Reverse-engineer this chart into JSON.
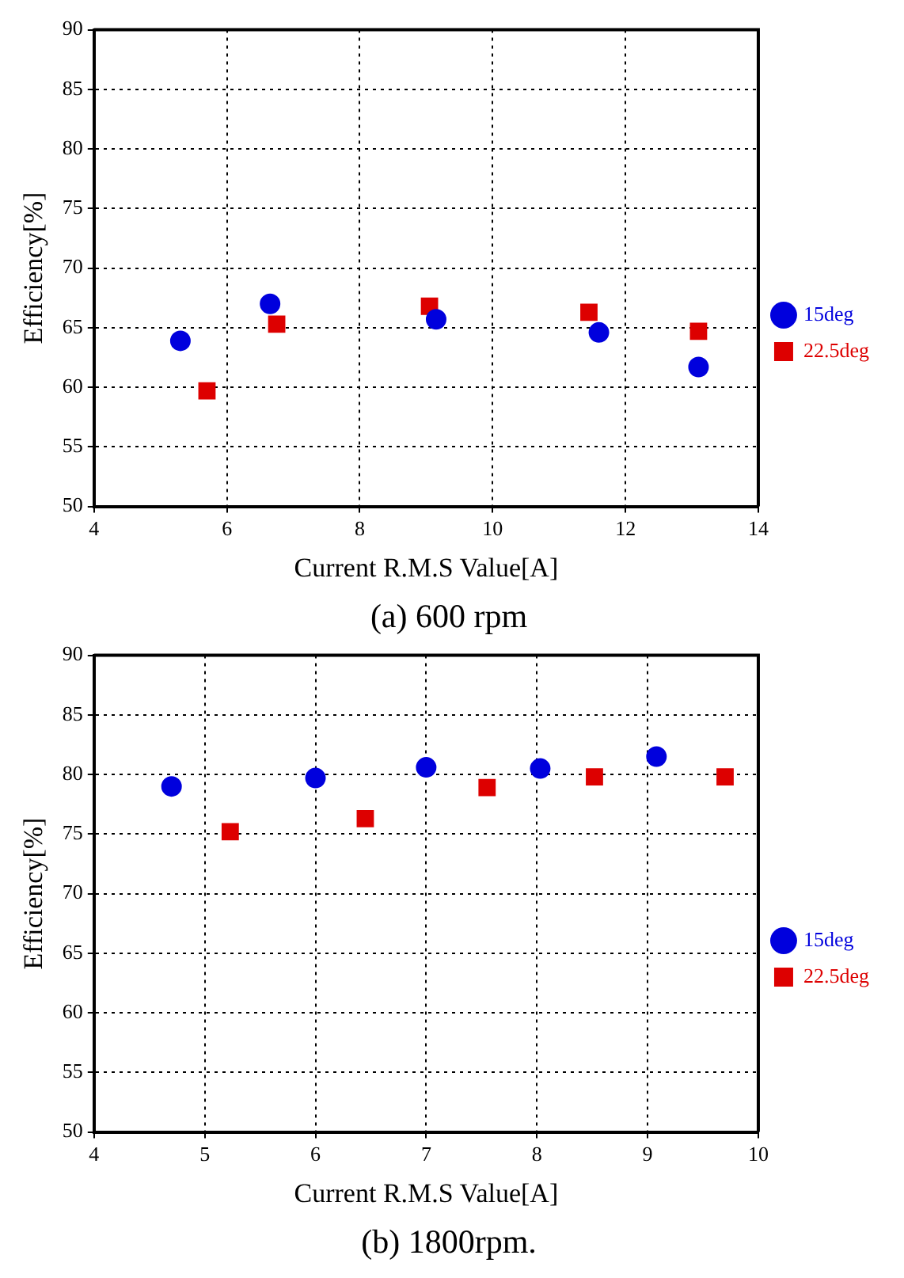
{
  "chart_data": [
    {
      "type": "scatter",
      "title": "(a) 600 rpm",
      "xlabel": "Current R.M.S Value[A]",
      "ylabel": "Efficiency[%]",
      "series": [
        {
          "name": "15deg",
          "color": "#0000dd",
          "marker": "circle",
          "x": [
            5.3,
            6.65,
            9.15,
            11.6,
            13.1
          ],
          "values": [
            63.9,
            67,
            65.7,
            64.6,
            61.7
          ]
        },
        {
          "name": "22.5deg",
          "color": "#dd0000",
          "marker": "square",
          "x": [
            5.7,
            6.75,
            9.05,
            11.45,
            13.1
          ],
          "values": [
            59.7,
            65.3,
            66.8,
            66.3,
            64.7
          ]
        }
      ],
      "xlim": [
        4,
        14
      ],
      "xticks": [
        4,
        6,
        8,
        10,
        12,
        14
      ],
      "ylim": [
        50,
        90
      ],
      "yticks": [
        50,
        55,
        60,
        65,
        70,
        75,
        80,
        85,
        90
      ],
      "grid": true,
      "legend": "right"
    },
    {
      "type": "scatter",
      "title": "(b) 1800rpm.",
      "xlabel": "Current R.M.S Value[A]",
      "ylabel": "Efficiency[%]",
      "series": [
        {
          "name": "15deg",
          "color": "#0000dd",
          "marker": "circle",
          "x": [
            4.7,
            6.0,
            7.0,
            8.03,
            9.08
          ],
          "values": [
            79.0,
            79.7,
            80.6,
            80.5,
            81.5
          ]
        },
        {
          "name": "22.5deg",
          "color": "#dd0000",
          "marker": "square",
          "x": [
            5.23,
            6.45,
            7.55,
            8.52,
            9.7
          ],
          "values": [
            75.2,
            76.3,
            78.9,
            79.8,
            79.8
          ]
        }
      ],
      "xlim": [
        4,
        10
      ],
      "xticks": [
        4,
        5,
        6,
        7,
        8,
        9,
        10
      ],
      "ylim": [
        50,
        90
      ],
      "yticks": [
        50,
        55,
        60,
        65,
        70,
        75,
        80,
        85,
        90
      ],
      "grid": true,
      "legend": "right"
    }
  ]
}
